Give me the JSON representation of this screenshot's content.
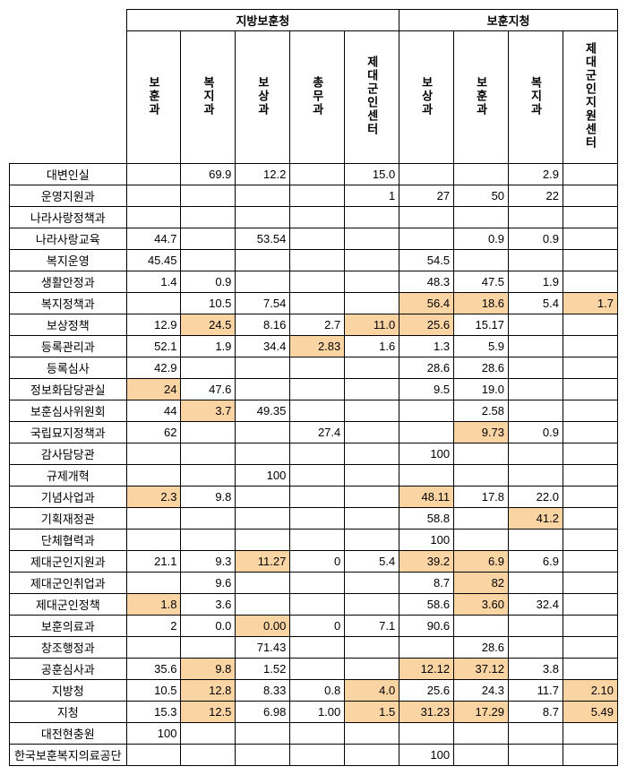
{
  "header_groups": [
    "지방보훈청",
    "보훈지청"
  ],
  "columns_group1": [
    "보훈과",
    "복지과",
    "보상과",
    "총무과",
    "제대군인센터"
  ],
  "columns_group2": [
    "보상과",
    "보훈과",
    "복지과",
    "제대군인지원센터"
  ],
  "highlight_color": "#fbd4a4",
  "rows": [
    {
      "label": "대변인실",
      "cells": [
        "",
        "69.9",
        "12.2",
        "",
        "15.0",
        "",
        "",
        "2.9",
        ""
      ],
      "hl": []
    },
    {
      "label": "운영지원과",
      "cells": [
        "",
        "",
        "",
        "",
        "1",
        "27",
        "50",
        "22",
        ""
      ],
      "hl": []
    },
    {
      "label": "나라사랑정책과",
      "cells": [
        "",
        "",
        "",
        "",
        "",
        "",
        "",
        "",
        ""
      ],
      "hl": []
    },
    {
      "label": "나라사랑교육",
      "cells": [
        "44.7",
        "",
        "53.54",
        "",
        "",
        "",
        "0.9",
        "0.9",
        ""
      ],
      "hl": []
    },
    {
      "label": "복지운영",
      "cells": [
        "45.45",
        "",
        "",
        "",
        "",
        "54.5",
        "",
        "",
        ""
      ],
      "hl": []
    },
    {
      "label": "생활안정과",
      "cells": [
        "1.4",
        "0.9",
        "",
        "",
        "",
        "48.3",
        "47.5",
        "1.9",
        ""
      ],
      "hl": []
    },
    {
      "label": "복지정책과",
      "cells": [
        "",
        "10.5",
        "7.54",
        "",
        "",
        "56.4",
        "18.6",
        "5.4",
        "1.7"
      ],
      "hl": [
        5,
        6,
        8
      ]
    },
    {
      "label": "보상정책",
      "cells": [
        "12.9",
        "24.5",
        "8.16",
        "2.7",
        "11.0",
        "25.6",
        "15.17",
        "",
        ""
      ],
      "hl": [
        1,
        4,
        5
      ]
    },
    {
      "label": "등록관리과",
      "cells": [
        "52.1",
        "1.9",
        "34.4",
        "2.83",
        "1.6",
        "1.3",
        "5.9",
        "",
        ""
      ],
      "hl": [
        3
      ]
    },
    {
      "label": "등록심사",
      "cells": [
        "42.9",
        "",
        "",
        "",
        "",
        "28.6",
        "28.6",
        "",
        ""
      ],
      "hl": []
    },
    {
      "label": "정보화담당관실",
      "cells": [
        "24",
        "47.6",
        "",
        "",
        "",
        "9.5",
        "19.0",
        "",
        ""
      ],
      "hl": [
        0
      ]
    },
    {
      "label": "보훈심사위원회",
      "cells": [
        "44",
        "3.7",
        "49.35",
        "",
        "",
        "",
        "2.58",
        "",
        ""
      ],
      "hl": [
        1
      ]
    },
    {
      "label": "국립묘지정책과",
      "cells": [
        "62",
        "",
        "",
        "27.4",
        "",
        "",
        "9.73",
        "0.9",
        ""
      ],
      "hl": [
        6
      ]
    },
    {
      "label": "감사담당관",
      "cells": [
        "",
        "",
        "",
        "",
        "",
        "100",
        "",
        "",
        ""
      ],
      "hl": []
    },
    {
      "label": "규제개혁",
      "cells": [
        "",
        "",
        "100",
        "",
        "",
        "",
        "",
        "",
        ""
      ],
      "hl": []
    },
    {
      "label": "기념사업과",
      "cells": [
        "2.3",
        "9.8",
        "",
        "",
        "",
        "48.11",
        "17.8",
        "22.0",
        ""
      ],
      "hl": [
        0,
        5
      ]
    },
    {
      "label": "기획재정관",
      "cells": [
        "",
        "",
        "",
        "",
        "",
        "58.8",
        "",
        "41.2",
        ""
      ],
      "hl": [
        7
      ]
    },
    {
      "label": "단체협력과",
      "cells": [
        "",
        "",
        "",
        "",
        "",
        "100",
        "",
        "",
        ""
      ],
      "hl": []
    },
    {
      "label": "제대군인지원과",
      "cells": [
        "21.1",
        "9.3",
        "11.27",
        "0",
        "5.4",
        "39.2",
        "6.9",
        "6.9",
        ""
      ],
      "hl": [
        2,
        5,
        6
      ]
    },
    {
      "label": "제대군인취업과",
      "cells": [
        "",
        "9.6",
        "",
        "",
        "",
        "8.7",
        "82",
        "",
        ""
      ],
      "hl": [
        6
      ]
    },
    {
      "label": "제대군인정책",
      "cells": [
        "1.8",
        "3.6",
        "",
        "",
        "",
        "58.6",
        "3.60",
        "32.4",
        ""
      ],
      "hl": [
        0,
        6
      ]
    },
    {
      "label": "보훈의료과",
      "cells": [
        "2",
        "0.0",
        "0.00",
        "0",
        "7.1",
        "90.6",
        "",
        "",
        ""
      ],
      "hl": [
        2
      ]
    },
    {
      "label": "창조행정과",
      "cells": [
        "",
        "",
        "71.43",
        "",
        "",
        "",
        "28.6",
        "",
        ""
      ],
      "hl": []
    },
    {
      "label": "공훈심사과",
      "cells": [
        "35.6",
        "9.8",
        "1.52",
        "",
        "",
        "12.12",
        "37.12",
        "3.8",
        ""
      ],
      "hl": [
        1,
        5,
        6
      ]
    },
    {
      "label": "지방청",
      "cells": [
        "10.5",
        "12.8",
        "8.33",
        "0.8",
        "4.0",
        "25.6",
        "24.3",
        "11.7",
        "2.10"
      ],
      "hl": [
        1,
        4,
        8
      ]
    },
    {
      "label": "지청",
      "cells": [
        "15.3",
        "12.5",
        "6.98",
        "1.00",
        "1.5",
        "31.23",
        "17.29",
        "8.7",
        "5.49"
      ],
      "hl": [
        1,
        4,
        5,
        6,
        8
      ]
    },
    {
      "label": "대전현충원",
      "cells": [
        "100",
        "",
        "",
        "",
        "",
        "",
        "",
        "",
        ""
      ],
      "hl": []
    },
    {
      "label": "한국보훈복지의료공단",
      "cells": [
        "",
        "",
        "",
        "",
        "",
        "100",
        "",
        "",
        ""
      ],
      "hl": []
    }
  ]
}
